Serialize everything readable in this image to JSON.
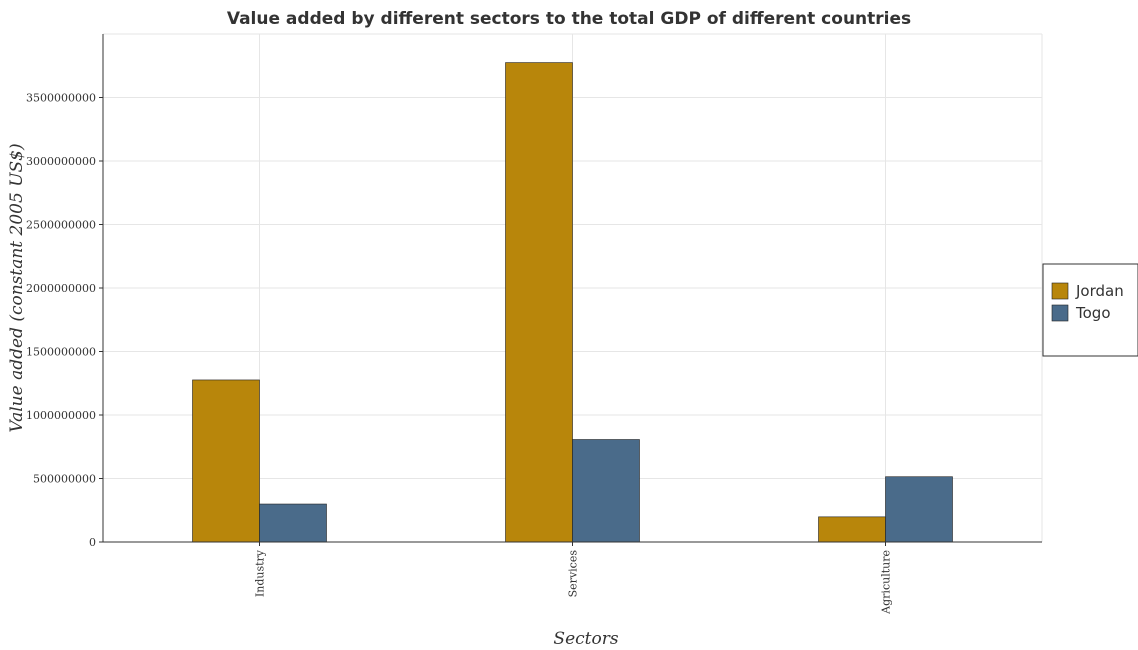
{
  "chart_data": {
    "type": "bar",
    "title": "Value added by different sectors to the total GDP of different countries",
    "xlabel": "Sectors",
    "ylabel": "Value added (constant 2005 US$)",
    "categories": [
      "Industry",
      "Services",
      "Agriculture"
    ],
    "series": [
      {
        "name": "Jordan",
        "color": "#b8860b",
        "values": [
          1276000000,
          3775000000,
          198000000
        ]
      },
      {
        "name": "Togo",
        "color": "#4a6b8a",
        "values": [
          299000000,
          807000000,
          514000000
        ]
      }
    ],
    "ylim": [
      0,
      4000000000
    ],
    "yticks": [
      "0",
      "500000000",
      "1000000000",
      "1500000000",
      "2000000000",
      "2500000000",
      "3000000000",
      "3500000000"
    ],
    "grid": true,
    "legend_position": "right"
  }
}
